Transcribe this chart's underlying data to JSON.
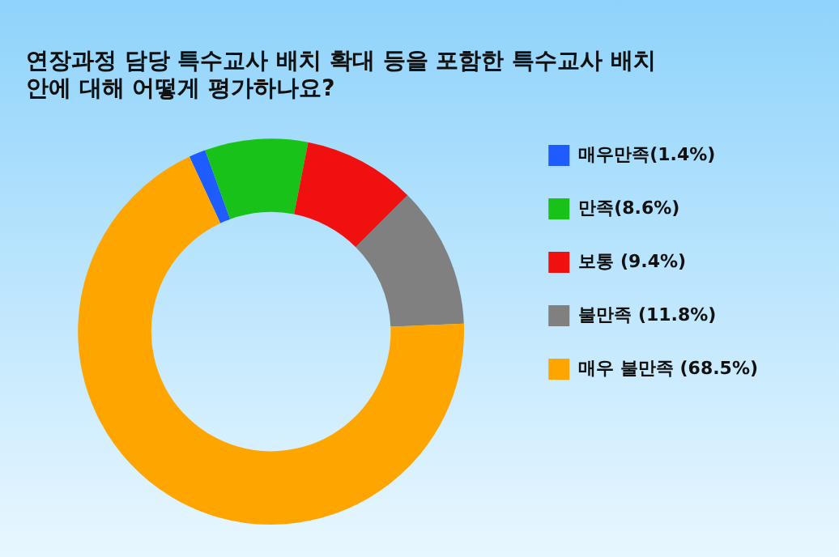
{
  "chart_data": {
    "type": "donut",
    "title": "연장과정 담당 특수교사 배치 확대 등을 포함한 특수교사 배치\n안에 대해 어떻게 평가하나요?",
    "categories": [
      "매우만족(1.4%)",
      "만족(8.6%)",
      "보통 (9.4%)",
      "불만족 (11.8%)",
      "매우 불만족 (68.5%)"
    ],
    "values": [
      1.4,
      8.6,
      9.4,
      11.8,
      68.5
    ],
    "colors": [
      "#1f5cff",
      "#19c219",
      "#f01010",
      "#808080",
      "#ffa500"
    ],
    "legend": "right"
  }
}
